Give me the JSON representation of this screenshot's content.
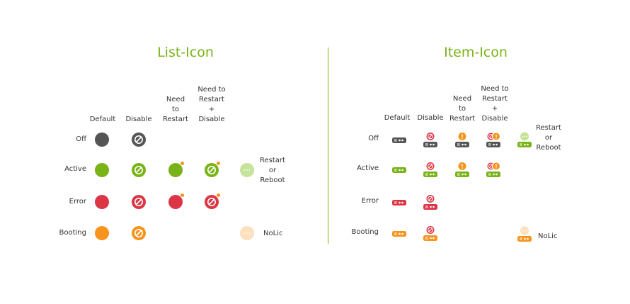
{
  "colors": {
    "off": "#555555",
    "active": "#7ab317",
    "error": "#dc3545",
    "booting": "#f7941d",
    "restart_light": "#c6e39a",
    "nolic_light": "#fde0bd",
    "title": "#7ab317"
  },
  "list_icon": {
    "title": "List-Icon",
    "columns": [
      {
        "key": "default",
        "label": "Default"
      },
      {
        "key": "disable",
        "label": "Disable"
      },
      {
        "key": "need_restart",
        "label": "Need\nto\nRestart"
      },
      {
        "key": "need_restart_disable",
        "label": "Need to\nRestart\n+\nDisable"
      }
    ],
    "rows": [
      {
        "key": "off",
        "label": "Off",
        "cells": [
          "default",
          "disable"
        ]
      },
      {
        "key": "active",
        "label": "Active",
        "cells": [
          "default",
          "disable",
          "need_restart",
          "need_restart_disable"
        ]
      },
      {
        "key": "error",
        "label": "Error",
        "cells": [
          "default",
          "disable",
          "need_restart",
          "need_restart_disable"
        ]
      },
      {
        "key": "booting",
        "label": "Booting",
        "cells": [
          "default",
          "disable"
        ]
      }
    ],
    "extras": [
      {
        "key": "restart_reboot",
        "label": "Restart\nor\nReboot",
        "row": "active"
      },
      {
        "key": "nolic",
        "label": "NoLic",
        "row": "booting"
      }
    ]
  },
  "item_icon": {
    "title": "Item-Icon",
    "columns": [
      {
        "key": "default",
        "label": "Default"
      },
      {
        "key": "disable",
        "label": "Disable"
      },
      {
        "key": "need_restart",
        "label": "Need\nto\nRestart"
      },
      {
        "key": "need_restart_disable",
        "label": "Need to\nRestart\n+\nDisable"
      }
    ],
    "rows": [
      {
        "key": "off",
        "label": "Off",
        "cells": [
          "default",
          "disable",
          "need_restart",
          "need_restart_disable"
        ]
      },
      {
        "key": "active",
        "label": "Active",
        "cells": [
          "default",
          "disable",
          "need_restart",
          "need_restart_disable"
        ]
      },
      {
        "key": "error",
        "label": "Error",
        "cells": [
          "default",
          "disable"
        ]
      },
      {
        "key": "booting",
        "label": "Booting",
        "cells": [
          "default",
          "disable"
        ]
      }
    ],
    "extras": [
      {
        "key": "restart_reboot",
        "label": "Restart\nor\nReboot",
        "row": "off"
      },
      {
        "key": "nolic",
        "label": "NoLic",
        "row": "booting"
      }
    ]
  }
}
